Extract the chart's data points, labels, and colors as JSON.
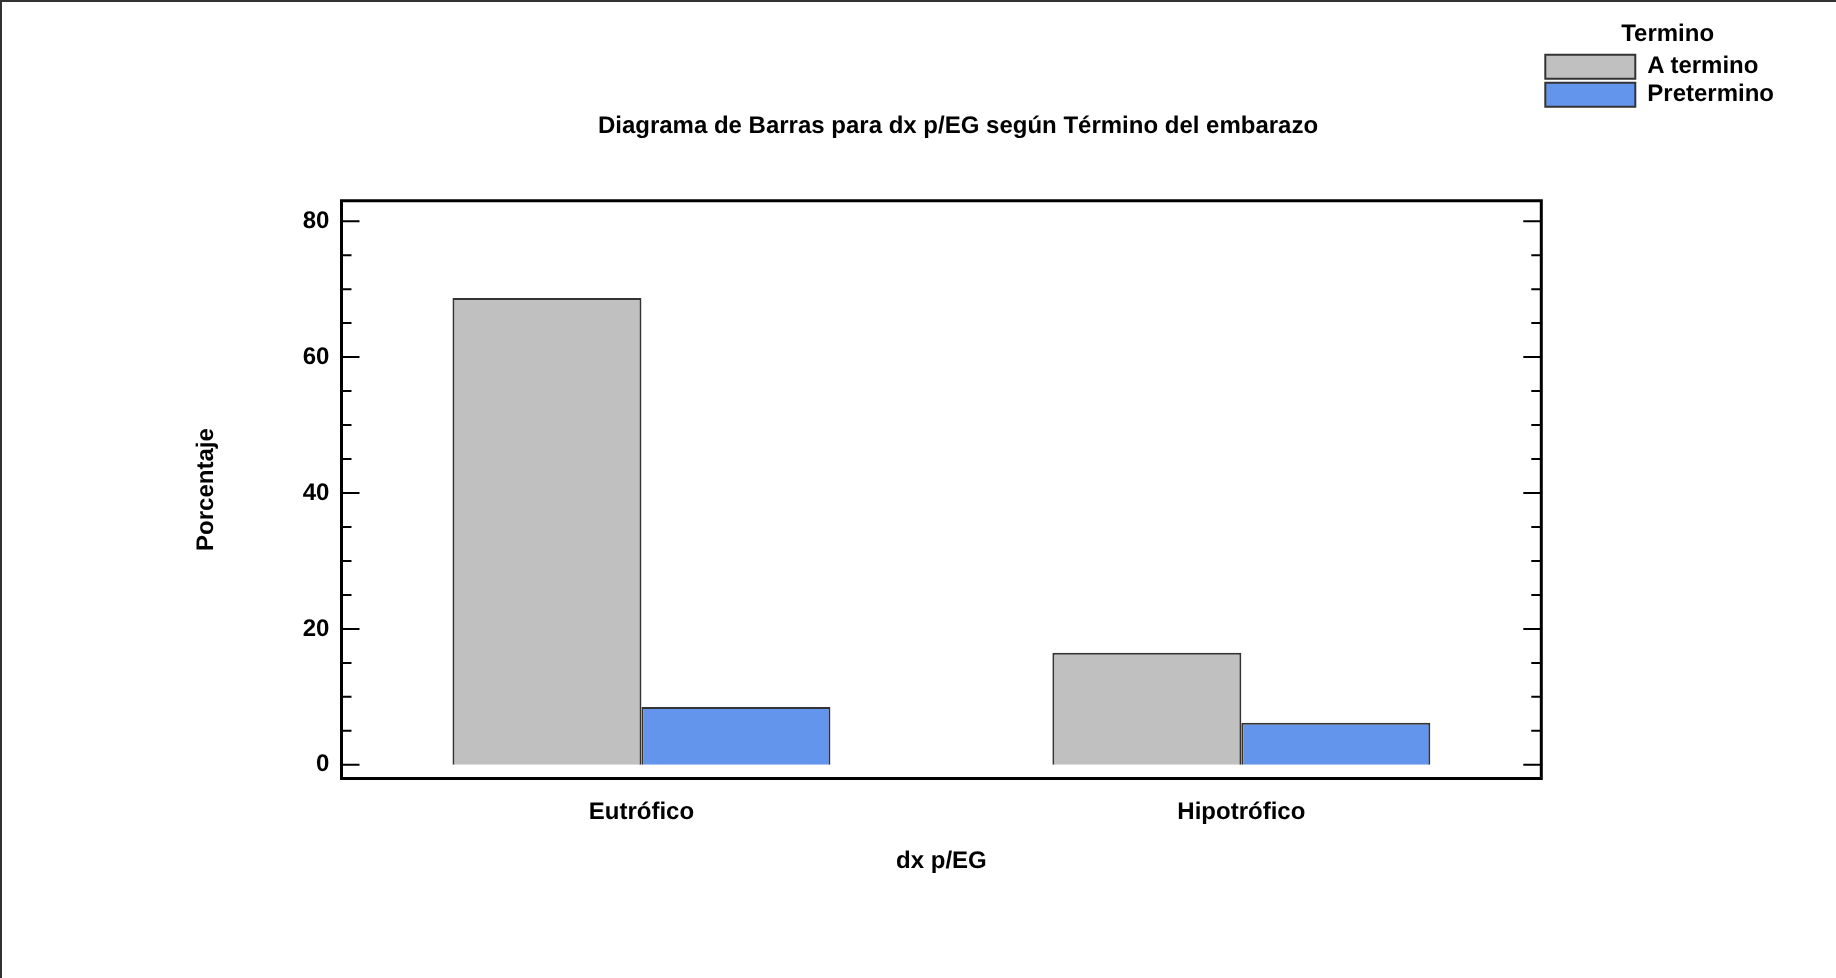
{
  "chart_data": {
    "type": "bar",
    "title": "Diagrama de Barras para dx p/EG según Término del embarazo",
    "xlabel": "dx p/EG",
    "ylabel": "Porcentaje",
    "legend_title": "Termino",
    "categories": [
      "Eutrófico",
      "Hipotrófico"
    ],
    "series": [
      {
        "name": "A termino",
        "color": "#c0c0c0",
        "values": [
          68.7,
          16.5
        ]
      },
      {
        "name": "Pretermino",
        "color": "#6495ed",
        "values": [
          8.5,
          6.2
        ]
      }
    ],
    "ylim": [
      -2,
      83
    ],
    "yticks": [
      0,
      {
        "value": 5,
        "label": null
      },
      {
        "value": 10,
        "label": null
      },
      {
        "value": 15,
        "label": null
      },
      20,
      {
        "value": 25,
        "label": null
      },
      {
        "value": 30,
        "label": null
      },
      {
        "value": 35,
        "label": null
      },
      40,
      {
        "value": 45,
        "label": null
      },
      {
        "value": 50,
        "label": null
      },
      {
        "value": 55,
        "label": null
      },
      60,
      {
        "value": 65,
        "label": null
      },
      {
        "value": 70,
        "label": null
      },
      {
        "value": 75,
        "label": null
      },
      80
    ],
    "grid": false,
    "legend": "top right"
  }
}
